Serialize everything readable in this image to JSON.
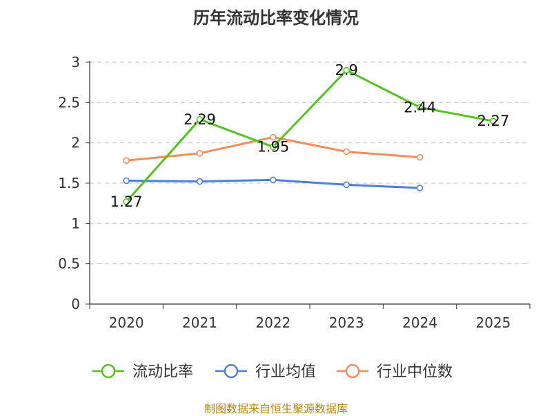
{
  "chart_data": {
    "type": "line",
    "title": "历年流动比率变化情况",
    "categories": [
      "2020",
      "2021",
      "2022",
      "2023",
      "2024",
      "2025"
    ],
    "y_ticks": [
      "0",
      "0.5",
      "1",
      "1.5",
      "2",
      "2.5",
      "3"
    ],
    "ylim": [
      0,
      3
    ],
    "grid": true,
    "legend_position": "bottom",
    "series": [
      {
        "name": "流动比率",
        "color": "#52c41a",
        "values": [
          1.27,
          2.29,
          1.95,
          2.9,
          2.44,
          2.27
        ],
        "labels": [
          "1.27",
          "2.29",
          "1.95",
          "2.9",
          "2.44",
          "2.27"
        ]
      },
      {
        "name": "行业均值",
        "color": "#4a7fdc",
        "values": [
          1.53,
          1.52,
          1.54,
          1.48,
          1.44,
          null
        ]
      },
      {
        "name": "行业中位数",
        "color": "#f78c5a",
        "values": [
          1.78,
          1.87,
          2.07,
          1.89,
          1.82,
          null
        ]
      }
    ],
    "source": "制图数据来自恒生聚源数据库"
  }
}
